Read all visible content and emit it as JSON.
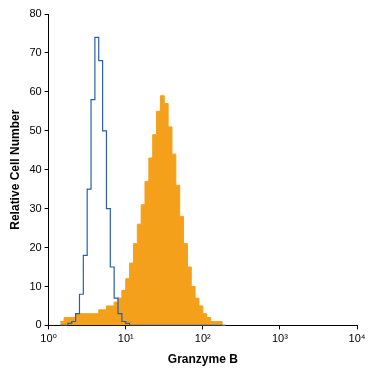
{
  "chart_data": {
    "type": "histogram",
    "x_label": "Granzyme B",
    "y_label": "Relative Cell Number",
    "log": "x",
    "grid": false,
    "xlim": [
      1,
      10000
    ],
    "xticks": [
      {
        "value": 1,
        "label": "10⁰"
      },
      {
        "value": 10,
        "label": "10¹"
      },
      {
        "value": 100,
        "label": "10²"
      },
      {
        "value": 1000,
        "label": "10³"
      },
      {
        "value": 10000,
        "label": "10⁴"
      }
    ],
    "ylim": [
      0,
      80
    ],
    "yticks": [
      0,
      10,
      20,
      30,
      40,
      50,
      60,
      70,
      80
    ],
    "bins": [
      1.413,
      1.585,
      1.778,
      1.995,
      2.239,
      2.512,
      2.818,
      3.162,
      3.548,
      3.981,
      4.467,
      5.012,
      5.623,
      6.31,
      7.079,
      7.943,
      8.913,
      10,
      11.22,
      12.59,
      14.13,
      15.85,
      17.78,
      19.95,
      22.39,
      25.12,
      28.18,
      31.62,
      35.48,
      39.81,
      44.67,
      50.12,
      56.23,
      63.1,
      70.79,
      79.43,
      89.13,
      100,
      112.2,
      125.9,
      141.3,
      158.5,
      177.8,
      199.5
    ],
    "series": [
      {
        "type": "area",
        "color": "#f5a01a",
        "values": [
          1,
          2,
          2,
          2,
          3,
          3,
          3,
          3,
          3,
          3,
          4,
          4,
          5,
          5,
          6,
          7,
          9,
          12,
          16,
          21,
          26,
          31,
          37,
          43,
          49,
          55,
          59,
          57,
          51,
          44,
          36,
          28,
          21,
          15,
          10,
          7,
          5,
          3,
          2,
          1,
          1,
          1,
          0
        ]
      },
      {
        "type": "line",
        "color": "#2a5ea8",
        "values": [
          0,
          0,
          0.5,
          1,
          3,
          8,
          18,
          35,
          58,
          74,
          68,
          50,
          30,
          15,
          7,
          3,
          1,
          0.5,
          0,
          0,
          0,
          0,
          0,
          0,
          0,
          0,
          0,
          0,
          0,
          0,
          0,
          0,
          0,
          0,
          0,
          0,
          0,
          0,
          0,
          0,
          0,
          0,
          0
        ]
      }
    ]
  }
}
